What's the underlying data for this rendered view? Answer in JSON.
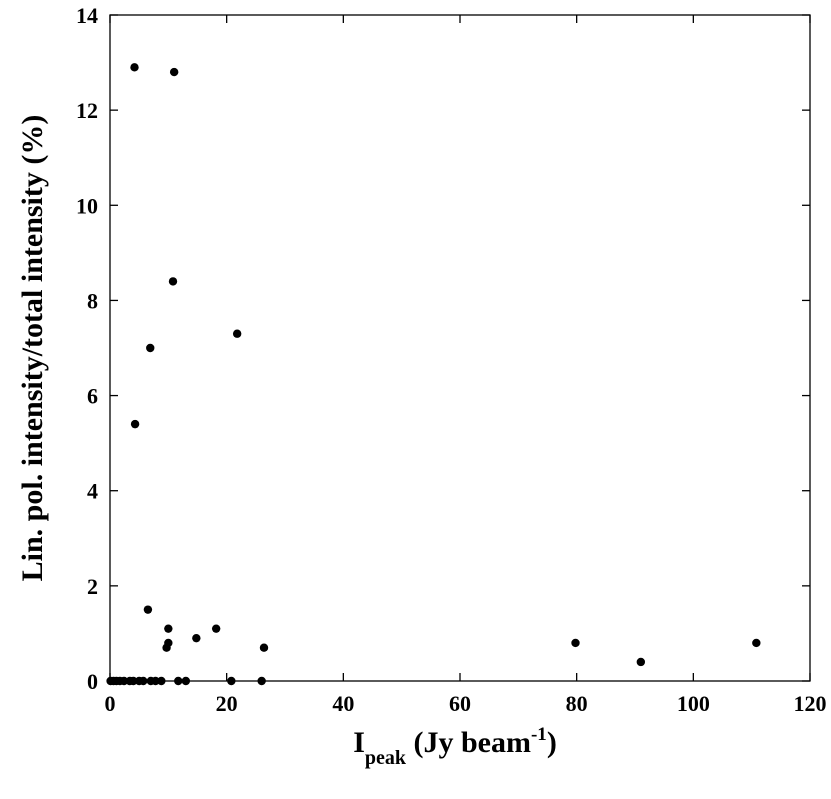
{
  "chart_data": {
    "type": "scatter",
    "xlabel": {
      "main": "I",
      "subscript": "peak",
      "rest": " (Jy beam",
      "superscript": "-1",
      "close": ")"
    },
    "ylabel": "Lin. pol. intensity/total intensity (%)",
    "xlim": [
      0,
      120
    ],
    "ylim": [
      0,
      14
    ],
    "xticks": [
      0,
      20,
      40,
      60,
      80,
      100,
      120
    ],
    "yticks": [
      0,
      2,
      4,
      6,
      8,
      10,
      12,
      14
    ],
    "grid": false,
    "legend": "none",
    "marker_color": "#000000",
    "points": [
      {
        "x": 4.2,
        "y": 12.9
      },
      {
        "x": 11.0,
        "y": 12.8
      },
      {
        "x": 10.8,
        "y": 8.4
      },
      {
        "x": 21.8,
        "y": 7.3
      },
      {
        "x": 6.9,
        "y": 7.0
      },
      {
        "x": 4.3,
        "y": 5.4
      },
      {
        "x": 6.5,
        "y": 1.5
      },
      {
        "x": 18.2,
        "y": 1.1
      },
      {
        "x": 10.0,
        "y": 1.1
      },
      {
        "x": 14.8,
        "y": 0.9
      },
      {
        "x": 10.0,
        "y": 0.8
      },
      {
        "x": 9.7,
        "y": 0.7
      },
      {
        "x": 26.4,
        "y": 0.7
      },
      {
        "x": 79.8,
        "y": 0.8
      },
      {
        "x": 91.0,
        "y": 0.4
      },
      {
        "x": 110.8,
        "y": 0.8
      },
      {
        "x": 0.1,
        "y": 0.0
      },
      {
        "x": 0.6,
        "y": 0.0
      },
      {
        "x": 1.1,
        "y": 0.0
      },
      {
        "x": 1.7,
        "y": 0.0
      },
      {
        "x": 2.4,
        "y": 0.0
      },
      {
        "x": 3.4,
        "y": 0.0
      },
      {
        "x": 4.0,
        "y": 0.0
      },
      {
        "x": 5.0,
        "y": 0.0
      },
      {
        "x": 5.7,
        "y": 0.0
      },
      {
        "x": 7.0,
        "y": 0.0
      },
      {
        "x": 7.8,
        "y": 0.0
      },
      {
        "x": 8.8,
        "y": 0.0
      },
      {
        "x": 11.7,
        "y": 0.0
      },
      {
        "x": 13.0,
        "y": 0.0
      },
      {
        "x": 20.8,
        "y": 0.0
      },
      {
        "x": 26.0,
        "y": 0.0
      }
    ]
  }
}
